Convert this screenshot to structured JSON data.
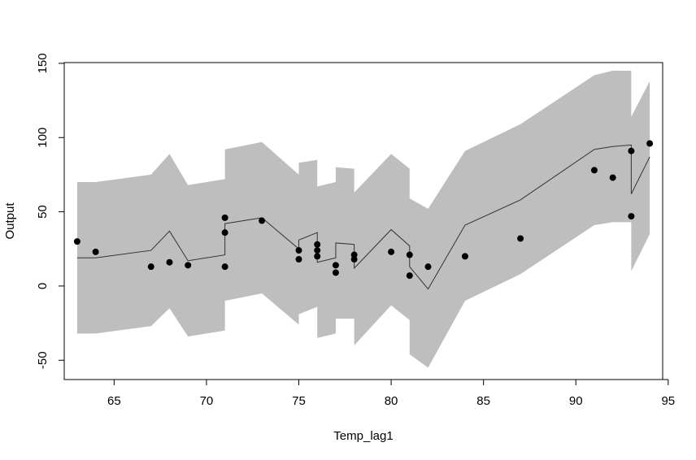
{
  "chart_data": {
    "type": "scatter",
    "title": "",
    "xlabel": "Temp_lag1",
    "ylabel": "Output",
    "xlim": [
      62.3,
      94.7
    ],
    "ylim": [
      -63,
      150.5
    ],
    "xticks": [
      65,
      70,
      75,
      80,
      85,
      90,
      95
    ],
    "yticks": [
      -50,
      0,
      50,
      100,
      150
    ],
    "xtick_labels": [
      "65",
      "70",
      "75",
      "80",
      "85",
      "90",
      "95"
    ],
    "ytick_labels": [
      "-50",
      "0",
      "50",
      "100",
      "150"
    ],
    "grid": false,
    "colors": {
      "band": "#bebebe",
      "line": "#333333",
      "points": "#000000",
      "frame": "#000000"
    },
    "points": [
      {
        "x": 63,
        "y": 30
      },
      {
        "x": 64,
        "y": 23
      },
      {
        "x": 67,
        "y": 13
      },
      {
        "x": 68,
        "y": 16
      },
      {
        "x": 69,
        "y": 14
      },
      {
        "x": 71,
        "y": 46
      },
      {
        "x": 71,
        "y": 36
      },
      {
        "x": 71,
        "y": 13
      },
      {
        "x": 73,
        "y": 44
      },
      {
        "x": 75,
        "y": 24
      },
      {
        "x": 75,
        "y": 18
      },
      {
        "x": 76,
        "y": 28
      },
      {
        "x": 76,
        "y": 24
      },
      {
        "x": 76,
        "y": 20
      },
      {
        "x": 77,
        "y": 14
      },
      {
        "x": 77,
        "y": 9
      },
      {
        "x": 78,
        "y": 21
      },
      {
        "x": 78,
        "y": 18
      },
      {
        "x": 80,
        "y": 23
      },
      {
        "x": 81,
        "y": 21
      },
      {
        "x": 81,
        "y": 7
      },
      {
        "x": 82,
        "y": 13
      },
      {
        "x": 84,
        "y": 20
      },
      {
        "x": 87,
        "y": 32
      },
      {
        "x": 91,
        "y": 78
      },
      {
        "x": 92,
        "y": 73
      },
      {
        "x": 93,
        "y": 91
      },
      {
        "x": 93,
        "y": 47
      },
      {
        "x": 94,
        "y": 96
      }
    ],
    "fit_line": [
      {
        "x": 63,
        "y": 19
      },
      {
        "x": 64,
        "y": 19
      },
      {
        "x": 67,
        "y": 24
      },
      {
        "x": 68,
        "y": 37
      },
      {
        "x": 69,
        "y": 17
      },
      {
        "x": 71,
        "y": 21
      },
      {
        "x": 71,
        "y": 42
      },
      {
        "x": 73,
        "y": 46
      },
      {
        "x": 75,
        "y": 25
      },
      {
        "x": 75,
        "y": 31
      },
      {
        "x": 76,
        "y": 36
      },
      {
        "x": 76,
        "y": 16
      },
      {
        "x": 77,
        "y": 19
      },
      {
        "x": 77,
        "y": 29
      },
      {
        "x": 78,
        "y": 28
      },
      {
        "x": 78,
        "y": 12
      },
      {
        "x": 80,
        "y": 38
      },
      {
        "x": 81,
        "y": 27
      },
      {
        "x": 81,
        "y": 13
      },
      {
        "x": 82,
        "y": -2
      },
      {
        "x": 84,
        "y": 41
      },
      {
        "x": 87,
        "y": 58
      },
      {
        "x": 91,
        "y": 92
      },
      {
        "x": 92,
        "y": 94
      },
      {
        "x": 93,
        "y": 95
      },
      {
        "x": 93,
        "y": 62
      },
      {
        "x": 94,
        "y": 87
      }
    ],
    "band_upper": [
      {
        "x": 63,
        "y": 70
      },
      {
        "x": 64,
        "y": 70
      },
      {
        "x": 67,
        "y": 75
      },
      {
        "x": 68,
        "y": 89
      },
      {
        "x": 69,
        "y": 68
      },
      {
        "x": 71,
        "y": 72
      },
      {
        "x": 71,
        "y": 92
      },
      {
        "x": 73,
        "y": 97
      },
      {
        "x": 75,
        "y": 75
      },
      {
        "x": 75,
        "y": 83
      },
      {
        "x": 76,
        "y": 85
      },
      {
        "x": 76,
        "y": 67
      },
      {
        "x": 77,
        "y": 70
      },
      {
        "x": 77,
        "y": 80
      },
      {
        "x": 78,
        "y": 79
      },
      {
        "x": 78,
        "y": 63
      },
      {
        "x": 80,
        "y": 89
      },
      {
        "x": 81,
        "y": 79
      },
      {
        "x": 81,
        "y": 59
      },
      {
        "x": 82,
        "y": 52
      },
      {
        "x": 84,
        "y": 91
      },
      {
        "x": 87,
        "y": 109
      },
      {
        "x": 91,
        "y": 142
      },
      {
        "x": 92,
        "y": 145
      },
      {
        "x": 93,
        "y": 145
      },
      {
        "x": 93,
        "y": 114
      },
      {
        "x": 94,
        "y": 138
      }
    ],
    "band_lower": [
      {
        "x": 63,
        "y": -32
      },
      {
        "x": 64,
        "y": -32
      },
      {
        "x": 67,
        "y": -27
      },
      {
        "x": 68,
        "y": -15
      },
      {
        "x": 69,
        "y": -34
      },
      {
        "x": 71,
        "y": -30
      },
      {
        "x": 71,
        "y": -10
      },
      {
        "x": 73,
        "y": -5
      },
      {
        "x": 75,
        "y": -26
      },
      {
        "x": 75,
        "y": -19
      },
      {
        "x": 76,
        "y": -14
      },
      {
        "x": 76,
        "y": -35
      },
      {
        "x": 77,
        "y": -32
      },
      {
        "x": 77,
        "y": -22
      },
      {
        "x": 78,
        "y": -22
      },
      {
        "x": 78,
        "y": -40
      },
      {
        "x": 80,
        "y": -13
      },
      {
        "x": 81,
        "y": -23
      },
      {
        "x": 81,
        "y": -46
      },
      {
        "x": 82,
        "y": -55
      },
      {
        "x": 84,
        "y": -10
      },
      {
        "x": 87,
        "y": 8
      },
      {
        "x": 91,
        "y": 41
      },
      {
        "x": 92,
        "y": 43
      },
      {
        "x": 93,
        "y": 43
      },
      {
        "x": 93,
        "y": 10
      },
      {
        "x": 94,
        "y": 35
      }
    ]
  }
}
